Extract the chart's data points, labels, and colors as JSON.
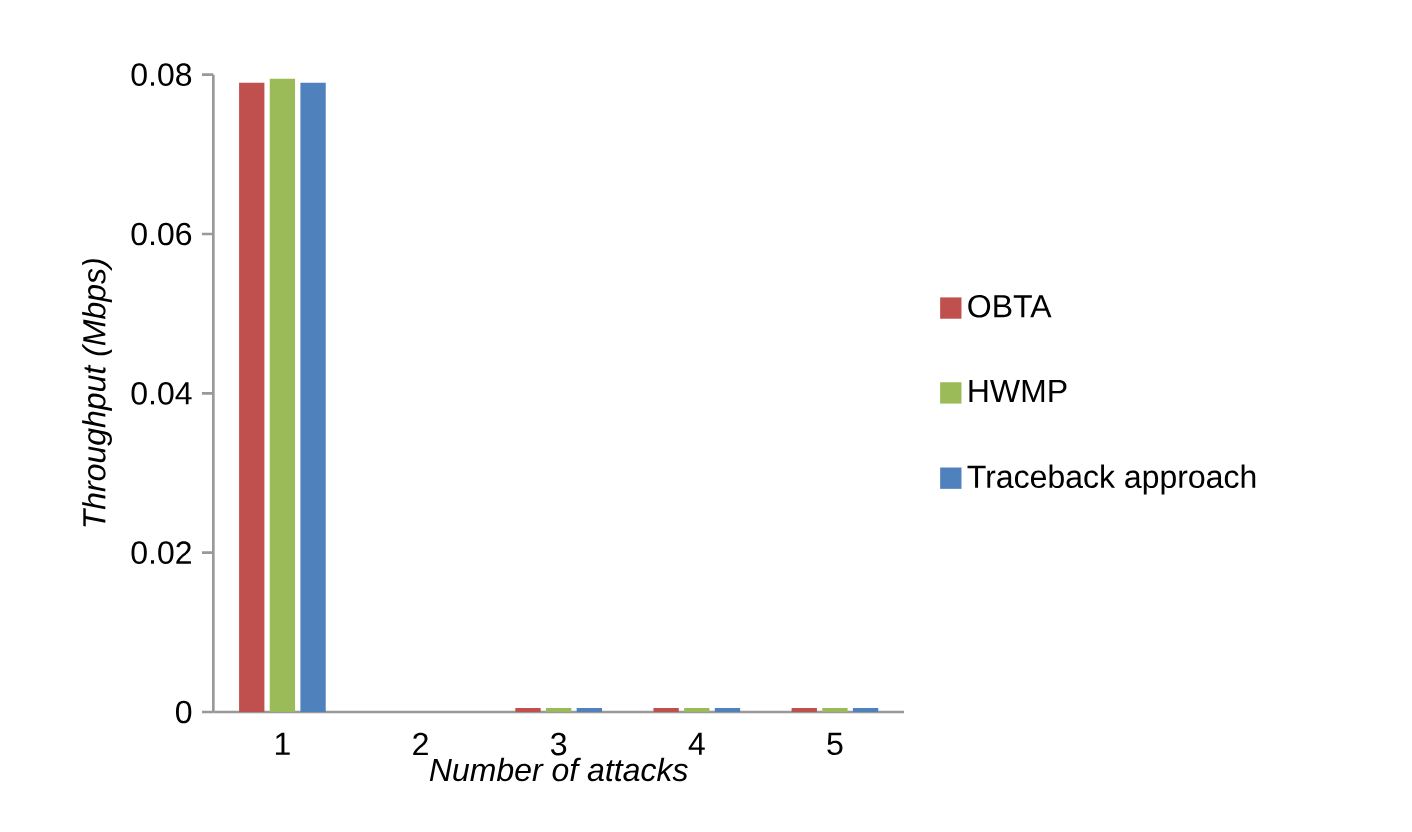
{
  "chart_data": {
    "type": "bar",
    "xlabel": "Number of attacks",
    "ylabel": "Throughput (Mbps)",
    "categories": [
      "1",
      "2",
      "3",
      "4",
      "5"
    ],
    "series": [
      {
        "name": "OBTA",
        "color": "#c0504d",
        "values": [
          0.079,
          0,
          0.0005,
          0.0005,
          0.0005
        ]
      },
      {
        "name": "HWMP",
        "color": "#9bbb59",
        "values": [
          0.0795,
          0,
          0.0005,
          0.0005,
          0.0005
        ]
      },
      {
        "name": "Traceback approach",
        "color": "#4f81bd",
        "values": [
          0.079,
          0,
          0.0005,
          0.0005,
          0.0005
        ]
      }
    ],
    "ylim": [
      0,
      0.08
    ],
    "yticks": [
      0,
      0.02,
      0.04,
      0.06,
      0.08
    ],
    "grid": false,
    "legend": "right"
  }
}
